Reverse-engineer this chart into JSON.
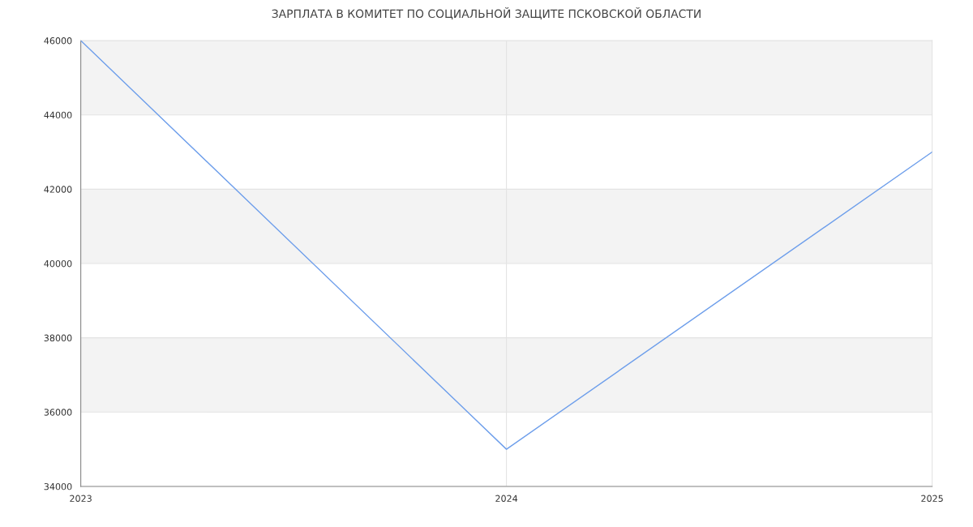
{
  "chart_data": {
    "type": "line",
    "title": "ЗАРПЛАТА В КОМИТЕТ ПО СОЦИАЛЬНОЙ ЗАЩИТЕ ПСКОВСКОЙ ОБЛАСТИ",
    "x": [
      2023,
      2024,
      2025
    ],
    "series": [
      {
        "color": "#6d9eeb",
        "values": [
          46000,
          35000,
          43000
        ]
      }
    ],
    "xlim": [
      2023,
      2025
    ],
    "xticks": [
      2023,
      2024,
      2025
    ],
    "ylim": [
      34000,
      46000
    ],
    "yticks": [
      34000,
      36000,
      38000,
      40000,
      42000,
      44000,
      46000
    ],
    "bands": [
      {
        "axis": "y",
        "from": 36000,
        "to": 38000,
        "color": "#f3f3f3"
      },
      {
        "axis": "y",
        "from": 40000,
        "to": 42000,
        "color": "#f3f3f3"
      },
      {
        "axis": "y",
        "from": 44000,
        "to": 46000,
        "color": "#f3f3f3"
      }
    ],
    "grid": true,
    "marker": "none",
    "line_style": "solid"
  }
}
